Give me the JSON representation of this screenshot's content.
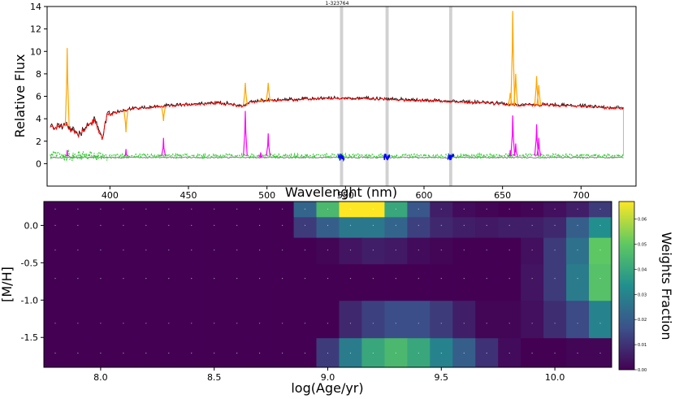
{
  "chart_data": [
    {
      "type": "line",
      "title": "1-323764",
      "xlabel": "Wavelenght (nm)",
      "ylabel": "Relative Flux",
      "xlim": [
        360,
        735
      ],
      "ylim": [
        -2,
        14
      ],
      "xticks": [
        "400",
        "450",
        "500",
        "550",
        "600",
        "650",
        "700"
      ],
      "yticks": [
        "0",
        "2",
        "4",
        "6",
        "8",
        "10",
        "12",
        "14"
      ],
      "masked_regions": [
        [
          546.5,
          548.5
        ],
        [
          575.5,
          577.5
        ],
        [
          616,
          618
        ]
      ],
      "series": [
        {
          "role": "observed",
          "color": "#000000"
        },
        {
          "role": "model",
          "color": "#ff0000"
        },
        {
          "role": "emission-peaks",
          "color": "#ffa500"
        },
        {
          "role": "gas-emission",
          "color": "#ff00ff"
        },
        {
          "role": "residuals",
          "color": "#32cd32"
        },
        {
          "role": "masked-residuals",
          "color": "#0000ff"
        }
      ],
      "emission_lines": [
        {
          "x": 372.8,
          "peak": 10.3,
          "gas": 1.2
        },
        {
          "x": 410.2,
          "peak": 2.8,
          "gas": 1.3
        },
        {
          "x": 434.1,
          "peak": 3.8,
          "gas": 2.3
        },
        {
          "x": 486.2,
          "peak": 7.2,
          "gas": 4.7
        },
        {
          "x": 496.0,
          "peak": 5.7,
          "gas": 1.0
        },
        {
          "x": 500.8,
          "peak": 7.2,
          "gas": 2.7
        },
        {
          "x": 654.9,
          "peak": 6.3,
          "gas": 1.2
        },
        {
          "x": 656.5,
          "peak": 13.6,
          "gas": 4.3
        },
        {
          "x": 658.4,
          "peak": 8.0,
          "gas": 1.8
        },
        {
          "x": 671.7,
          "peak": 7.8,
          "gas": 3.5
        },
        {
          "x": 673.1,
          "peak": 7.0,
          "gas": 2.3
        }
      ],
      "continuum_knots": [
        [
          362,
          3.2
        ],
        [
          372,
          3.4
        ],
        [
          380,
          2.6
        ],
        [
          385,
          3.3
        ],
        [
          390,
          3.8
        ],
        [
          395,
          2.3
        ],
        [
          398,
          4.2
        ],
        [
          405,
          4.6
        ],
        [
          415,
          4.9
        ],
        [
          425,
          5.0
        ],
        [
          435,
          5.1
        ],
        [
          445,
          5.2
        ],
        [
          455,
          5.3
        ],
        [
          470,
          5.4
        ],
        [
          485,
          5.1
        ],
        [
          490,
          5.5
        ],
        [
          500,
          5.6
        ],
        [
          520,
          5.7
        ],
        [
          540,
          5.8
        ],
        [
          560,
          5.8
        ],
        [
          580,
          5.7
        ],
        [
          600,
          5.6
        ],
        [
          620,
          5.5
        ],
        [
          640,
          5.4
        ],
        [
          660,
          5.2
        ],
        [
          680,
          5.2
        ],
        [
          700,
          5.1
        ],
        [
          727,
          4.9
        ]
      ],
      "residual_level": 0.7
    },
    {
      "type": "heatmap",
      "xlabel": "log(Age/yr)",
      "ylabel": "[M/H]",
      "colorbar_label": "Weights Fraction",
      "xlim": [
        7.75,
        10.25
      ],
      "ylim": [
        -1.9,
        0.32
      ],
      "xticks": [
        "8.0",
        "8.5",
        "9.0",
        "9.5",
        "10.0"
      ],
      "yticks": [
        "0.0",
        "-0.5",
        "-1.0",
        "-1.5"
      ],
      "colorbar_ticks": [
        "0.00",
        "0.01",
        "0.02",
        "0.03",
        "0.04",
        "0.05",
        "0.06"
      ],
      "vmax": 0.067,
      "age_bins": [
        7.8,
        7.9,
        8.0,
        8.1,
        8.2,
        8.3,
        8.4,
        8.5,
        8.6,
        8.7,
        8.8,
        8.9,
        9.0,
        9.1,
        9.2,
        9.3,
        9.4,
        9.5,
        9.6,
        9.7,
        9.8,
        9.9,
        10.0,
        10.1,
        10.2
      ],
      "metallicity_bins": [
        0.22,
        0.0,
        -0.33,
        -0.71,
        -1.31,
        -1.71
      ],
      "weights": [
        [
          0,
          0,
          0,
          0,
          0,
          0,
          0,
          0,
          0,
          0,
          0,
          0.022,
          0.045,
          0.067,
          0.067,
          0.04,
          0.018,
          0.006,
          0.002,
          0.001,
          0,
          0.001,
          0.003,
          0.006,
          0.012
        ],
        [
          0,
          0,
          0,
          0,
          0,
          0,
          0,
          0,
          0,
          0,
          0,
          0.012,
          0.02,
          0.027,
          0.027,
          0.022,
          0.013,
          0.008,
          0.006,
          0.005,
          0.006,
          0.006,
          0.008,
          0.02,
          0.033
        ],
        [
          0,
          0,
          0,
          0,
          0,
          0,
          0,
          0,
          0,
          0,
          0,
          0,
          0.001,
          0.004,
          0.006,
          0.005,
          0.002,
          0.001,
          0,
          0,
          0,
          0.003,
          0.012,
          0.025,
          0.05
        ],
        [
          0,
          0,
          0,
          0,
          0,
          0,
          0,
          0,
          0,
          0,
          0,
          0,
          0,
          0,
          0,
          0,
          0,
          0,
          0,
          0,
          0,
          0.004,
          0.012,
          0.028,
          0.048
        ],
        [
          0,
          0,
          0,
          0,
          0,
          0,
          0,
          0,
          0,
          0,
          0,
          0,
          0,
          0.008,
          0.013,
          0.016,
          0.016,
          0.012,
          0.006,
          0.001,
          0.001,
          0.003,
          0.009,
          0.015,
          0.03
        ],
        [
          0,
          0,
          0,
          0,
          0,
          0,
          0,
          0,
          0,
          0,
          0,
          0,
          0.012,
          0.028,
          0.04,
          0.045,
          0.04,
          0.03,
          0.02,
          0.01,
          0.002,
          0,
          0,
          0.001,
          0.001
        ]
      ]
    }
  ]
}
